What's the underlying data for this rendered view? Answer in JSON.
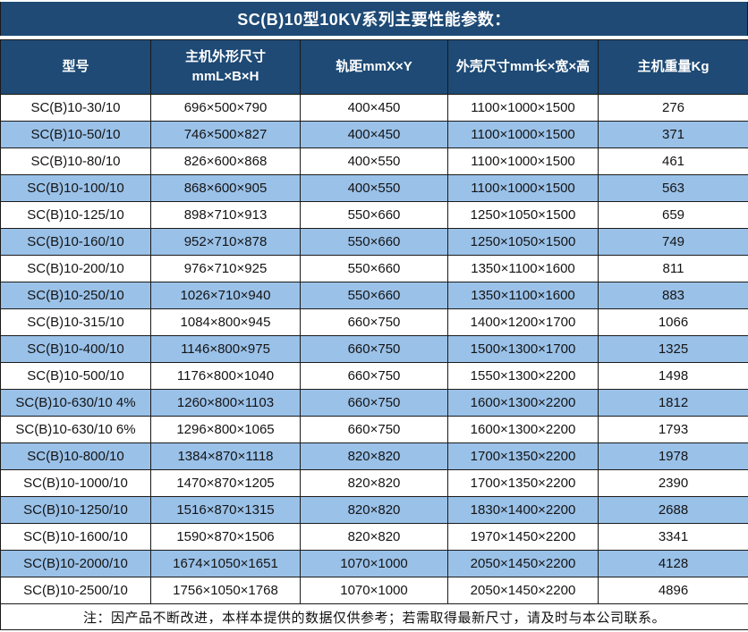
{
  "title": "SC(B)10型10KV系列主要性能参数：",
  "colors": {
    "header_bg": "#1e4a75",
    "header_text": "#ffffff",
    "row_alt_bg": "#9ac1e8",
    "row_bg": "#ffffff",
    "border": "#1a1a1a",
    "data_text": "#141414"
  },
  "table": {
    "headers": [
      {
        "label": "型号"
      },
      {
        "label": "主机外形尺寸",
        "sublabel": "mmL×B×H"
      },
      {
        "label": "轨距mmX×Y"
      },
      {
        "label": "外壳尺寸mm长×宽×高"
      },
      {
        "label": "主机重量Kg"
      }
    ],
    "rows": [
      [
        "SC(B)10-30/10",
        "696×500×790",
        "400×450",
        "1100×1000×1500",
        "276"
      ],
      [
        "SC(B)10-50/10",
        "746×500×827",
        "400×450",
        "1100×1000×1500",
        "371"
      ],
      [
        "SC(B)10-80/10",
        "826×600×868",
        "400×550",
        "1100×1000×1500",
        "461"
      ],
      [
        "SC(B)10-100/10",
        "868×600×905",
        "400×550",
        "1100×1000×1500",
        "563"
      ],
      [
        "SC(B)10-125/10",
        "898×710×913",
        "550×660",
        "1250×1050×1500",
        "659"
      ],
      [
        "SC(B)10-160/10",
        "952×710×878",
        "550×660",
        "1250×1050×1500",
        "749"
      ],
      [
        "SC(B)10-200/10",
        "976×710×925",
        "550×660",
        "1350×1100×1600",
        "811"
      ],
      [
        "SC(B)10-250/10",
        "1026×710×940",
        "550×660",
        "1350×1100×1600",
        "883"
      ],
      [
        "SC(B)10-315/10",
        "1084×800×945",
        "660×750",
        "1400×1200×1700",
        "1066"
      ],
      [
        "SC(B)10-400/10",
        "1146×800×975",
        "660×750",
        "1500×1300×1700",
        "1325"
      ],
      [
        "SC(B)10-500/10",
        "1176×800×1040",
        "660×750",
        "1550×1300×2200",
        "1498"
      ],
      [
        "SC(B)10-630/10 4%",
        "1260×800×1103",
        "660×750",
        "1600×1300×2200",
        "1812"
      ],
      [
        "SC(B)10-630/10 6%",
        "1296×800×1065",
        "660×750",
        "1600×1300×2200",
        "1793"
      ],
      [
        "SC(B)10-800/10",
        "1384×870×1118",
        "820×820",
        "1700×1350×2200",
        "1978"
      ],
      [
        "SC(B)10-1000/10",
        "1470×870×1205",
        "820×820",
        "1700×1350×2200",
        "2390"
      ],
      [
        "SC(B)10-1250/10",
        "1516×870×1315",
        "820×820",
        "1830×1400×2200",
        "2688"
      ],
      [
        "SC(B)10-1600/10",
        "1590×870×1506",
        "820×820",
        "1970×1450×2200",
        "3341"
      ],
      [
        "SC(B)10-2000/10",
        "1674×1050×1651",
        "1070×1000",
        "2050×1450×2200",
        "4128"
      ],
      [
        "SC(B)10-2500/10",
        "1756×1050×1768",
        "1070×1000",
        "2050×1450×2200",
        "4896"
      ]
    ]
  },
  "note": "注：因产品不断改进，本样本提供的数据仅供参考；若需取得最新尺寸，请及时与本公司联系。"
}
